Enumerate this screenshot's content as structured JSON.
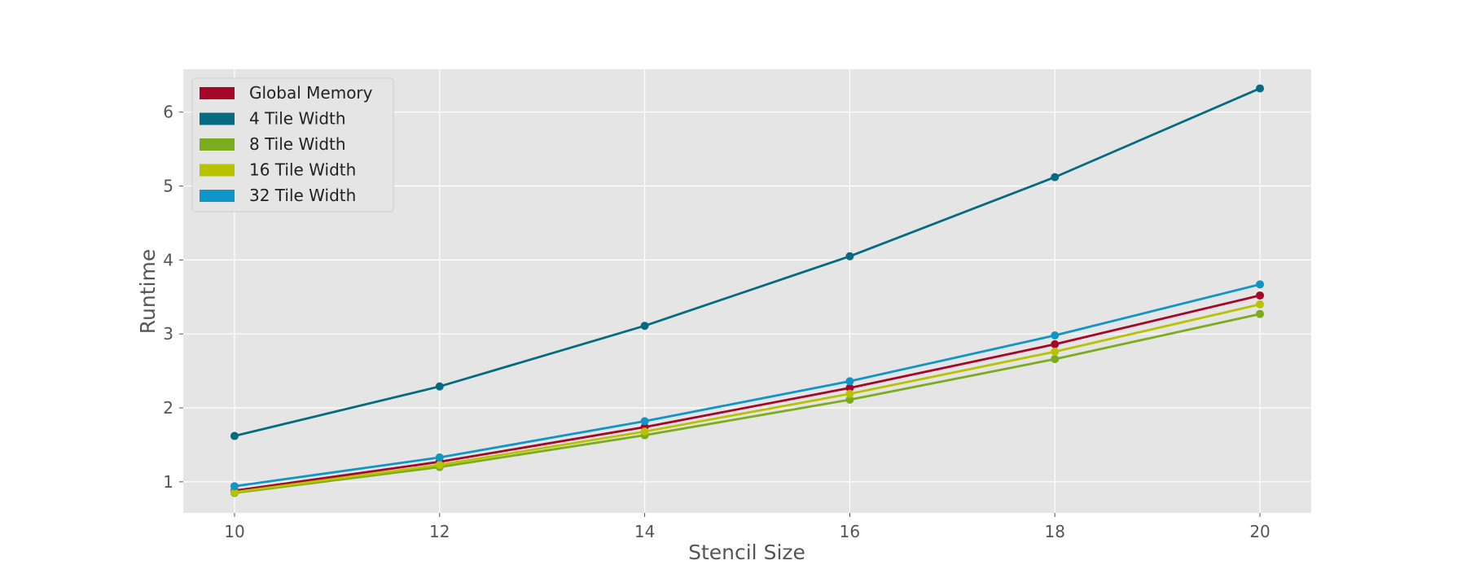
{
  "chart_data": {
    "type": "line",
    "title": "",
    "xlabel": "Stencil Size",
    "ylabel": "Runtime",
    "x": [
      10,
      12,
      14,
      16,
      18,
      20
    ],
    "xlim": [
      9.5,
      20.5
    ],
    "ylim": [
      0.58,
      6.58
    ],
    "xticks": [
      10,
      12,
      14,
      16,
      18,
      20
    ],
    "yticks": [
      1,
      2,
      3,
      4,
      5,
      6
    ],
    "grid": true,
    "legend_position": "top-left",
    "series": [
      {
        "name": "Global Memory",
        "color": "#a60628",
        "values": [
          0.88,
          1.27,
          1.74,
          2.27,
          2.86,
          3.52
        ]
      },
      {
        "name": "4 Tile Width",
        "color": "#056b82",
        "values": [
          1.62,
          2.29,
          3.11,
          4.05,
          5.12,
          6.32
        ]
      },
      {
        "name": "8 Tile Width",
        "color": "#7aac1e",
        "values": [
          0.85,
          1.2,
          1.63,
          2.11,
          2.66,
          3.27
        ]
      },
      {
        "name": "16 Tile Width",
        "color": "#b7c300",
        "values": [
          0.86,
          1.23,
          1.68,
          2.19,
          2.76,
          3.4
        ]
      },
      {
        "name": "32 Tile Width",
        "color": "#1095c9",
        "values": [
          0.94,
          1.33,
          1.82,
          2.36,
          2.98,
          3.67
        ]
      }
    ]
  }
}
